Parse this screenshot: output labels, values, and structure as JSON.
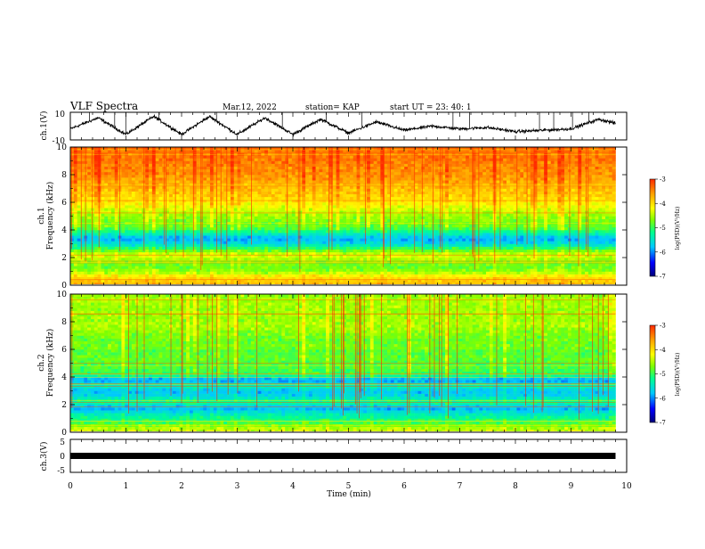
{
  "header": {
    "title": "VLF Spectra",
    "date": "Mar.12, 2022",
    "station": "station= KAP",
    "start": "start  UT =   23: 40: 1"
  },
  "colors": {
    "spectrogram_scale": [
      "#00007a",
      "#0000ff",
      "#00c8ff",
      "#00ff90",
      "#7fff00",
      "#ffff00",
      "#ffa000",
      "#ff2a00"
    ]
  },
  "chart_data": [
    {
      "type": "line",
      "panel": "ch1-waveform",
      "ylabel": "ch.1(V)",
      "ylim": [
        -10,
        10
      ],
      "yticks": [
        "10",
        "-10"
      ],
      "xlim": [
        0,
        10
      ],
      "x": [
        0,
        0.5,
        1.0,
        1.5,
        2.0,
        2.5,
        3.0,
        3.5,
        4.0,
        4.5,
        5.0,
        5.5,
        6.0,
        6.5,
        7.0,
        7.5,
        8.0,
        8.5,
        9.0,
        9.5,
        9.8
      ],
      "values": [
        -2,
        6,
        -6,
        7,
        -6,
        7,
        -6,
        6,
        -6,
        5,
        -5,
        3,
        -3,
        0,
        -2,
        -1,
        -4,
        -3,
        -2,
        5,
        2
      ]
    },
    {
      "type": "heatmap",
      "panel": "ch1-spectrogram",
      "ylabel": "ch.1\nFrequency (kHz)",
      "ylim": [
        0,
        10
      ],
      "yticks": [
        "0",
        "2",
        "4",
        "6",
        "8",
        "10"
      ],
      "xlim": [
        0,
        9.8
      ],
      "freq_khz": [
        0.2,
        0.6,
        1.0,
        1.4,
        1.8,
        2.2,
        2.6,
        3.0,
        3.4,
        3.8,
        4.2,
        4.6,
        5.0,
        5.4,
        5.8,
        6.2,
        6.6,
        7.0,
        7.4,
        7.8,
        8.2,
        8.6,
        9.0,
        9.4,
        9.8
      ],
      "log_psd": [
        -3.8,
        -4.0,
        -4.6,
        -4.8,
        -4.6,
        -4.3,
        -4.9,
        -5.6,
        -5.9,
        -5.3,
        -4.8,
        -4.7,
        -4.6,
        -4.4,
        -4.2,
        -4.0,
        -3.9,
        -3.8,
        -3.7,
        -3.6,
        -3.5,
        -3.5,
        -3.4,
        -3.4,
        -3.4
      ],
      "colorbar": {
        "label": "log(PSD)(V²/Hz)",
        "range": [
          -7,
          -3
        ],
        "ticks": [
          "-3",
          "-4",
          "-5",
          "-6",
          "-7"
        ]
      }
    },
    {
      "type": "heatmap",
      "panel": "ch2-spectrogram",
      "ylabel": "ch.2\nFrequency (kHz)",
      "ylim": [
        0,
        10
      ],
      "yticks": [
        "0",
        "2",
        "4",
        "6",
        "8",
        "10"
      ],
      "xlim": [
        0,
        9.8
      ],
      "freq_khz": [
        0.2,
        0.6,
        1.0,
        1.4,
        1.8,
        2.2,
        2.6,
        3.0,
        3.4,
        3.8,
        4.2,
        4.6,
        5.0,
        5.4,
        5.8,
        6.2,
        6.6,
        7.0,
        7.4,
        7.8,
        8.2,
        8.6,
        9.0,
        9.4,
        9.8
      ],
      "log_psd": [
        -4.4,
        -4.8,
        -5.2,
        -5.5,
        -5.9,
        -5.1,
        -5.6,
        -5.8,
        -5.3,
        -6.0,
        -5.0,
        -4.9,
        -4.9,
        -4.8,
        -4.9,
        -4.7,
        -4.8,
        -4.7,
        -4.6,
        -4.5,
        -4.6,
        -4.5,
        -4.6,
        -4.5,
        -4.6
      ],
      "colorbar": {
        "label": "log(PSD)(V²/Hz)",
        "range": [
          -7,
          -3
        ],
        "ticks": [
          "-3",
          "-4",
          "-5",
          "-6",
          "-7"
        ]
      }
    },
    {
      "type": "line",
      "panel": "ch3-waveform",
      "ylabel": "ch.3(V)",
      "ylim": [
        -5,
        5
      ],
      "yticks": [
        "5",
        "0",
        "-5"
      ],
      "xlim": [
        0,
        10
      ],
      "x": [
        0,
        9.8
      ],
      "values": [
        0,
        0
      ]
    }
  ],
  "xaxis": {
    "label": "Time (min)",
    "range": [
      0,
      10
    ],
    "ticks": [
      "0",
      "1",
      "2",
      "3",
      "4",
      "5",
      "6",
      "7",
      "8",
      "9",
      "10"
    ]
  }
}
